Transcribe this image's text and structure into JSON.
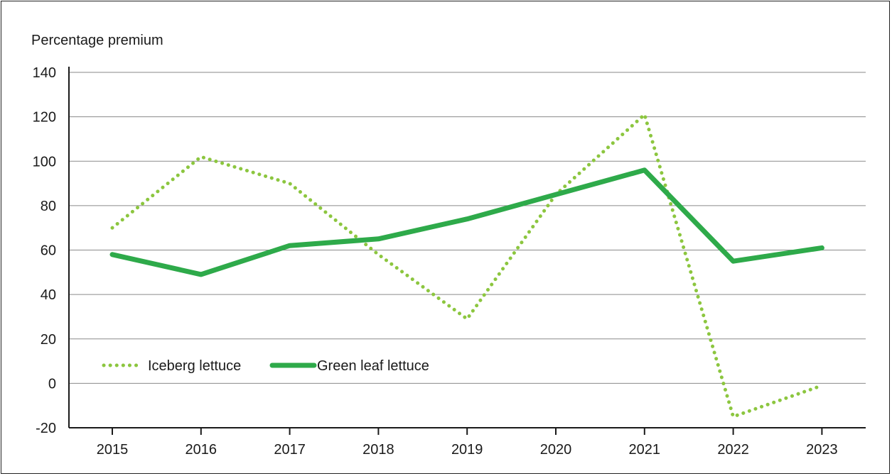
{
  "chart_data": {
    "type": "line",
    "title": "",
    "xlabel": "",
    "ylabel": "Percentage premium",
    "categories": [
      "2015",
      "2016",
      "2017",
      "2018",
      "2019",
      "2020",
      "2021",
      "2022",
      "2023"
    ],
    "ylim": [
      -20,
      140
    ],
    "yticks": [
      -20,
      0,
      20,
      40,
      60,
      80,
      100,
      120,
      140
    ],
    "grid": true,
    "legend_position": "bottom-left",
    "series": [
      {
        "name": "Iceberg lettuce",
        "style": "dotted",
        "color": "#8cc63f",
        "values": [
          70,
          102,
          90,
          58,
          29,
          85,
          121,
          -15,
          -1
        ]
      },
      {
        "name": "Green leaf lettuce",
        "style": "solid",
        "color": "#2eaa4a",
        "values": [
          58,
          49,
          62,
          65,
          74,
          85,
          96,
          55,
          61
        ]
      }
    ]
  }
}
